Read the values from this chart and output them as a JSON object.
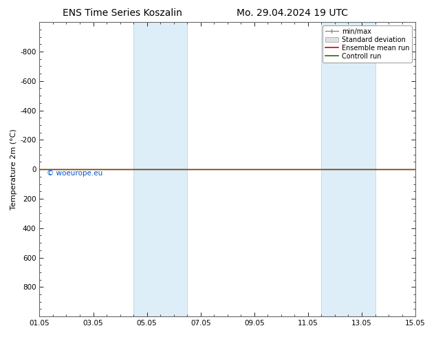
{
  "title_left": "ENS Time Series Koszalin",
  "title_right": "Mo. 29.04.2024 19 UTC",
  "ylabel": "Temperature 2m (°C)",
  "ylim_top": -1000,
  "ylim_bottom": 1000,
  "yticks": [
    -800,
    -600,
    -400,
    -200,
    0,
    200,
    400,
    600,
    800
  ],
  "xtick_labels": [
    "01.05",
    "03.05",
    "05.05",
    "07.05",
    "09.05",
    "11.05",
    "13.05",
    "15.05"
  ],
  "xtick_positions": [
    0,
    2,
    4,
    6,
    8,
    10,
    12,
    14
  ],
  "xlim": [
    0,
    14
  ],
  "shaded_bands": [
    {
      "start": 3.5,
      "end": 5.5
    },
    {
      "start": 10.5,
      "end": 12.5
    }
  ],
  "shaded_color": "#ddeef8",
  "shaded_edge_color": "#bbddee",
  "green_line_color": "#336600",
  "red_line_color": "#cc0000",
  "watermark": "© woeurope.eu",
  "watermark_color": "#0055cc",
  "background_color": "#ffffff",
  "plot_bg_color": "#ffffff",
  "title_fontsize": 10,
  "axis_fontsize": 8,
  "tick_fontsize": 7.5,
  "legend_fontsize": 7,
  "minmax_color": "#888888",
  "std_dev_color": "#cccccc"
}
